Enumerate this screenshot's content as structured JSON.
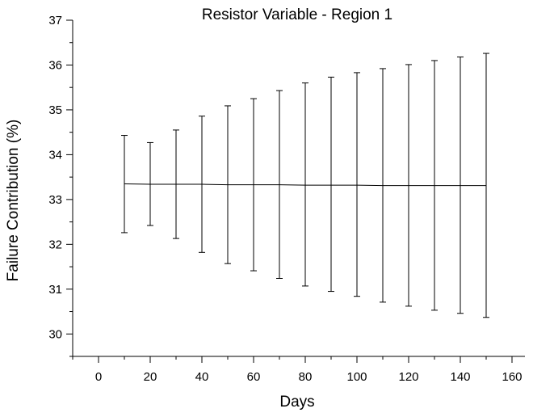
{
  "chart_data": {
    "type": "line",
    "title": "Resistor Variable - Region 1",
    "xlabel": "Days",
    "ylabel": "Failure Contribution (%)",
    "xlim": [
      -10,
      165
    ],
    "ylim": [
      29.5,
      37
    ],
    "x_ticks": [
      0,
      20,
      40,
      60,
      80,
      100,
      120,
      140,
      160
    ],
    "y_ticks": [
      30,
      31,
      32,
      33,
      34,
      35,
      36,
      37
    ],
    "grid": false,
    "legend": "none",
    "series": [
      {
        "x": [
          10,
          20,
          30,
          40,
          50,
          60,
          70,
          80,
          90,
          100,
          110,
          120,
          130,
          140,
          150
        ],
        "y": [
          33.35,
          33.34,
          33.34,
          33.34,
          33.33,
          33.33,
          33.33,
          33.32,
          33.32,
          33.32,
          33.31,
          33.31,
          33.31,
          33.31,
          33.31
        ],
        "y_error_upper": [
          34.43,
          34.27,
          34.55,
          34.86,
          35.09,
          35.25,
          35.43,
          35.6,
          35.73,
          35.83,
          35.92,
          36.01,
          36.1,
          36.18,
          36.26
        ],
        "y_error_lower": [
          32.26,
          32.42,
          32.13,
          31.82,
          31.57,
          31.41,
          31.24,
          31.07,
          30.95,
          30.84,
          30.71,
          30.62,
          30.53,
          30.46,
          30.37
        ]
      }
    ],
    "line_color": "#000000"
  }
}
